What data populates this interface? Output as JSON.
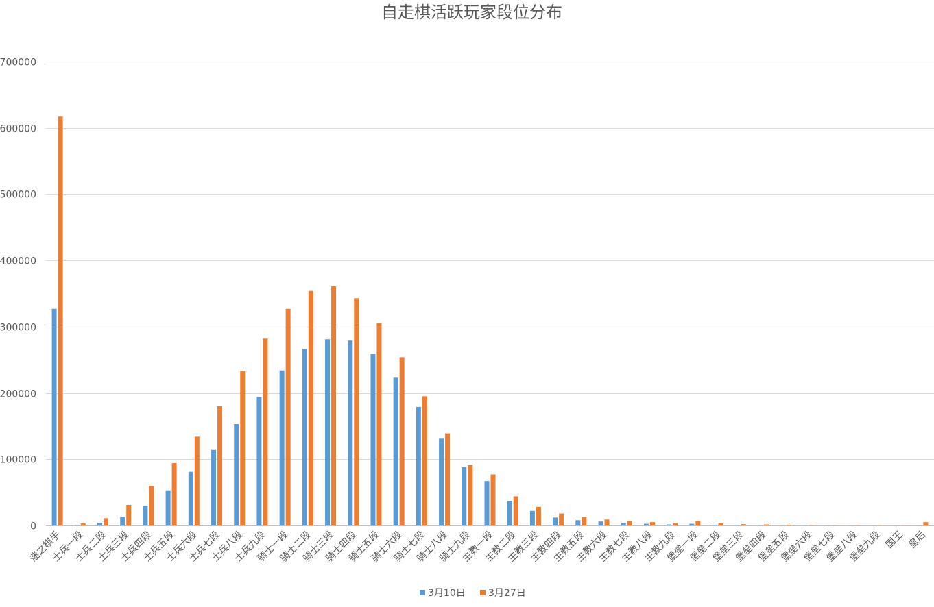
{
  "chart_data": {
    "type": "bar",
    "title": "自走棋活跃玩家段位分布",
    "xlabel": "",
    "ylabel": "",
    "ylim": [
      0,
      700000
    ],
    "yticks": [
      0,
      100000,
      200000,
      300000,
      400000,
      500000,
      600000,
      700000
    ],
    "grid": true,
    "legend_position": "bottom",
    "categories": [
      "迷之棋手",
      "士兵一段",
      "士兵二段",
      "士兵三段",
      "士兵四段",
      "士兵五段",
      "士兵六段",
      "士兵七段",
      "士兵八段",
      "士兵九段",
      "骑士一段",
      "骑士二段",
      "骑士三段",
      "骑士四段",
      "骑士五段",
      "骑士六段",
      "骑士七段",
      "骑士八段",
      "骑士九段",
      "主教一段",
      "主教二段",
      "主教三段",
      "主教四段",
      "主教五段",
      "主教六段",
      "主教七段",
      "主教八段",
      "主教九段",
      "堡垒一段",
      "堡垒二段",
      "堡垒三段",
      "堡垒四段",
      "堡垒五段",
      "堡垒六段",
      "堡垒七段",
      "堡垒八段",
      "堡垒九段",
      "国王",
      "皇后"
    ],
    "series": [
      {
        "name": "3月10日",
        "color": "#5b9bd5",
        "values": [
          327000,
          500,
          4000,
          13000,
          30000,
          53000,
          81000,
          114000,
          153000,
          194000,
          234000,
          266000,
          281000,
          279000,
          259000,
          223000,
          179000,
          131000,
          88000,
          67000,
          37000,
          22000,
          12000,
          8000,
          6000,
          4000,
          2500,
          1500,
          2500,
          1000,
          300,
          300,
          200,
          100,
          100,
          100,
          100,
          100,
          100
        ]
      },
      {
        "name": "3月27日",
        "color": "#ed7d31",
        "values": [
          617000,
          3000,
          11000,
          31000,
          60000,
          94000,
          134000,
          180000,
          233000,
          282000,
          327000,
          354000,
          361000,
          343000,
          305000,
          254000,
          195000,
          139000,
          91000,
          77000,
          44000,
          28000,
          18000,
          13000,
          9000,
          7000,
          5000,
          3500,
          7000,
          3500,
          2000,
          1500,
          1000,
          300,
          200,
          200,
          200,
          200,
          5000
        ]
      }
    ]
  }
}
